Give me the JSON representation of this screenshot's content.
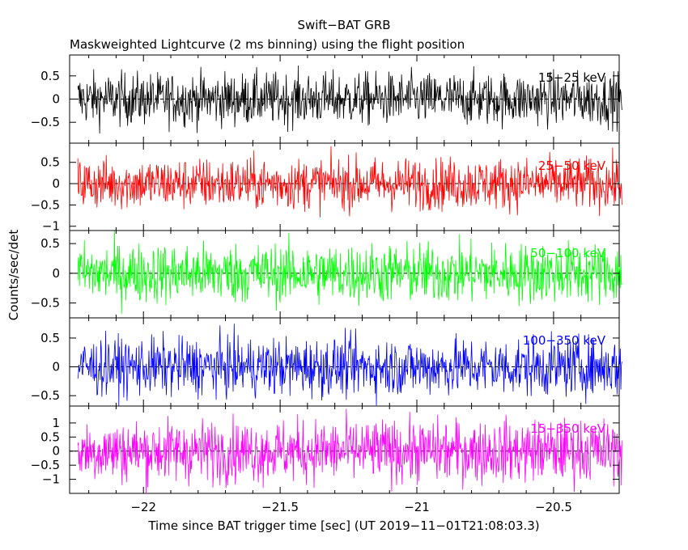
{
  "chart_data": {
    "type": "line",
    "title": "Swift−BAT GRB",
    "subtitle": "Maskweighted Lightcurve (2 ms binning) using the flight position",
    "xlabel": "Time since BAT trigger time [sec] (UT 2019−11−01T21:08:03.3)",
    "ylabel": "Counts/sec/det",
    "xlim": [
      -22.27,
      -20.26
    ],
    "x_ticks": [
      "−22",
      "−21.5",
      "−21",
      "−20.5"
    ],
    "x_tick_values": [
      -22,
      -21.5,
      -21,
      -20.5
    ],
    "bin_width_sec": 0.002,
    "x_start": -22.24,
    "x_end": -20.25,
    "grid": false,
    "panels": [
      {
        "label": "15−25 keV",
        "color": "#000000",
        "ylim": [
          -0.95,
          0.95
        ],
        "yticks": [
          "0.5",
          "0",
          "−0.5"
        ],
        "ytick_values": [
          0.5,
          0,
          -0.5
        ],
        "noise_amplitude": 0.28
      },
      {
        "label": "25−50 keV",
        "color": "#ff0000",
        "ylim": [
          -1.1,
          0.95
        ],
        "yticks": [
          "0.5",
          "0",
          "−0.5",
          "−1"
        ],
        "ytick_values": [
          0.5,
          0,
          -0.5,
          -1
        ],
        "noise_amplitude": 0.3
      },
      {
        "label": "50−100 keV",
        "color": "#00ff00",
        "ylim": [
          -0.75,
          0.72
        ],
        "yticks": [
          "0.5",
          "0",
          "−0.5"
        ],
        "ytick_values": [
          0.5,
          0,
          -0.5
        ],
        "noise_amplitude": 0.25
      },
      {
        "label": "100−350 keV",
        "color": "#0000ff",
        "ylim": [
          -0.68,
          0.85
        ],
        "yticks": [
          "0.5",
          "0",
          "−0.5"
        ],
        "ytick_values": [
          0.5,
          0,
          -0.5
        ],
        "noise_amplitude": 0.25
      },
      {
        "label": "15−350 keV",
        "color": "#ff00ff",
        "ylim": [
          -1.5,
          1.6
        ],
        "yticks": [
          "1",
          "0.5",
          "0",
          "−0.5",
          "−1"
        ],
        "ytick_values": [
          1,
          0.5,
          0,
          -0.5,
          -1
        ],
        "noise_amplitude": 0.55
      }
    ]
  }
}
